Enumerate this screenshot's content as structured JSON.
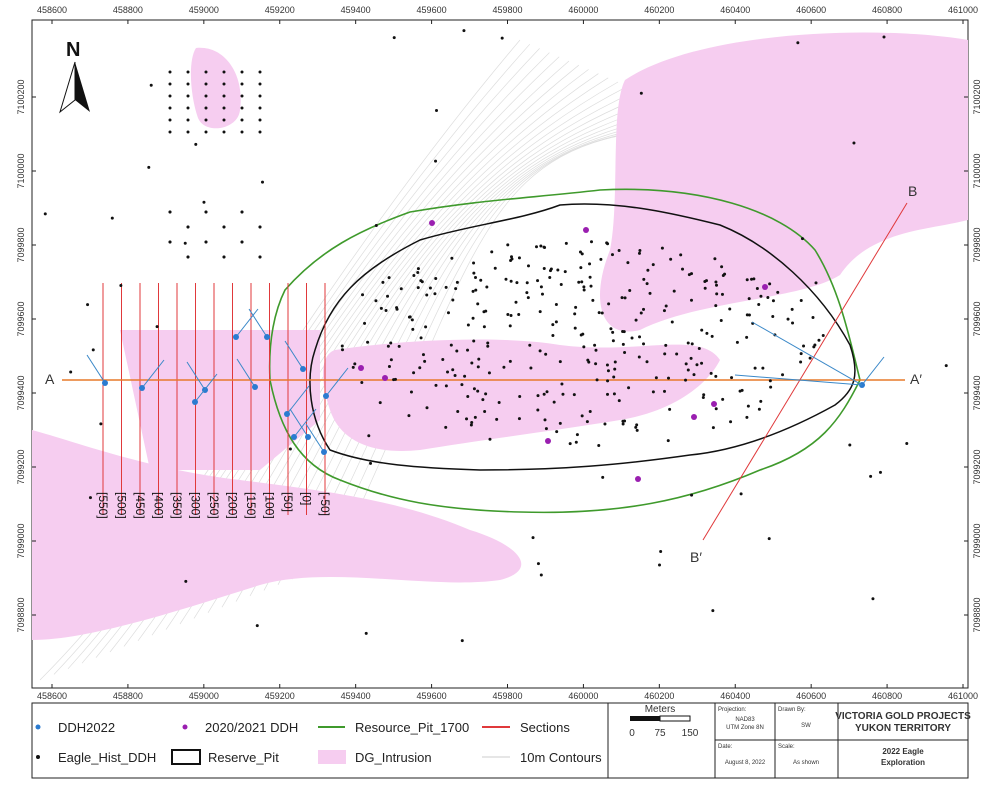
{
  "map": {
    "north_arrow": "N",
    "x_ticks": [
      458600,
      458800,
      459000,
      459200,
      459400,
      459600,
      459800,
      460000,
      460200,
      460400,
      460600,
      460800,
      461000
    ],
    "y_ticks": [
      7098800,
      7099000,
      7099200,
      7099400,
      7099600,
      7099800,
      7100000,
      7100200
    ],
    "sections": [
      "[550]",
      "[500]",
      "[450]",
      "[400]",
      "[350]",
      "[300]",
      "[250]",
      "[200]",
      "[150]",
      "[100]",
      "[50]",
      "[0]",
      "[-50]"
    ],
    "section_lines": {
      "a_start": "A",
      "a_end": "A′",
      "b_start": "B",
      "b_end": "B′"
    }
  },
  "legend": {
    "items": [
      "DDH2022",
      "2020/2021 DDH",
      "Resource_Pit_1700",
      "Sections",
      "Eagle_Hist_DDH",
      "Reserve_Pit",
      "DG_Intrusion",
      "10m Contours"
    ]
  },
  "title_block": {
    "scale_title": "Meters",
    "scale_ticks": [
      "0",
      "75",
      "150"
    ],
    "projection_label": "Projection:",
    "projection": [
      "NAD83",
      "UTM Zone 8N"
    ],
    "drawn_by_label": "Drawn By:",
    "drawn_by": "SW",
    "date_label": "Date:",
    "date": "August 8, 2022",
    "scale_label": "Scale:",
    "scale": "As shown",
    "company": [
      "VICTORIA GOLD PROJECTS",
      "YUKON TERRITORY"
    ],
    "project": [
      "2022 Eagle",
      "Exploration"
    ]
  }
}
